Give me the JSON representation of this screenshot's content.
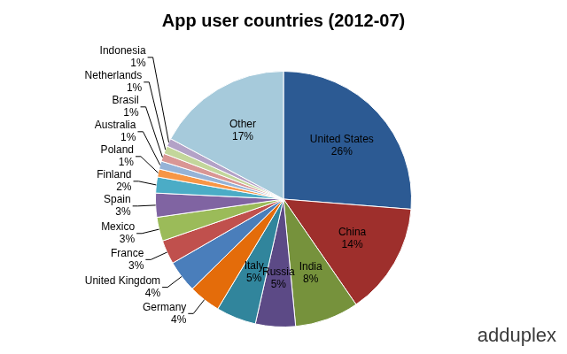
{
  "chart_data": {
    "type": "pie",
    "title": "App user countries (2012-07)",
    "categories": [
      "United States",
      "China",
      "India",
      "Russia",
      "Italy",
      "Germany",
      "United Kingdom",
      "France",
      "Mexico",
      "Spain",
      "Finland",
      "Poland",
      "Australia",
      "Brasil",
      "Netherlands",
      "Indonesia",
      "Other"
    ],
    "values": [
      26,
      14,
      8,
      5,
      5,
      4,
      4,
      3,
      3,
      3,
      2,
      1,
      1,
      1,
      1,
      1,
      17
    ],
    "value_labels": [
      "26%",
      "14%",
      "8%",
      "5%",
      "5%",
      "4%",
      "4%",
      "3%",
      "3%",
      "3%",
      "2%",
      "1%",
      "1%",
      "1%",
      "1%",
      "1%",
      "17%"
    ],
    "colors": [
      "#2c5a93",
      "#9e2f2c",
      "#76923c",
      "#5c4a86",
      "#31859c",
      "#e46c0a",
      "#4a7ebb",
      "#c0504d",
      "#9bbb59",
      "#8064a2",
      "#4bacc6",
      "#f79646",
      "#95b3d7",
      "#d99694",
      "#c3d69b",
      "#b3a2c7",
      "#a6cadb"
    ],
    "data_labels": true,
    "annotations": [
      "adduplex"
    ]
  }
}
